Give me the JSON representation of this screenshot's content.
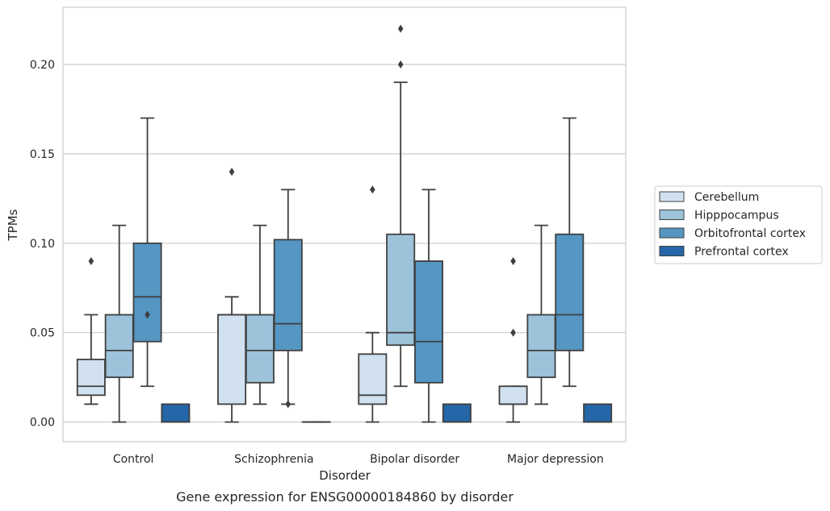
{
  "chart_data": {
    "type": "box",
    "xlabel": "Disorder",
    "ylabel": "TPMs",
    "caption": "Gene expression for ENSG00000184860 by disorder",
    "ylim": [
      -0.011,
      0.232
    ],
    "yticks": [
      0.0,
      0.05,
      0.1,
      0.15,
      0.2
    ],
    "ytick_labels": [
      "0.00",
      "0.05",
      "0.10",
      "0.15",
      "0.20"
    ],
    "grid": "horizontal",
    "legend_position": "right",
    "categories": [
      "Control",
      "Schizophrenia",
      "Bipolar disorder",
      "Major depression"
    ],
    "series": [
      {
        "name": "Cerebellum",
        "color": "#d1e1f0",
        "boxes": [
          {
            "whisker_low": 0.01,
            "q1": 0.015,
            "median": 0.02,
            "q3": 0.035,
            "whisker_high": 0.06,
            "outliers": [
              0.09
            ]
          },
          {
            "whisker_low": 0.0,
            "q1": 0.01,
            "median": 0.06,
            "q3": 0.06,
            "whisker_high": 0.07,
            "outliers": [
              0.14
            ]
          },
          {
            "whisker_low": 0.0,
            "q1": 0.01,
            "median": 0.015,
            "q3": 0.038,
            "whisker_high": 0.05,
            "outliers": [
              0.13
            ]
          },
          {
            "whisker_low": 0.0,
            "q1": 0.01,
            "median": 0.01,
            "q3": 0.02,
            "whisker_high": 0.02,
            "outliers": [
              0.05,
              0.09
            ]
          }
        ]
      },
      {
        "name": "Hipppocampus",
        "color": "#9cc3da",
        "boxes": [
          {
            "whisker_low": 0.0,
            "q1": 0.025,
            "median": 0.04,
            "q3": 0.06,
            "whisker_high": 0.11,
            "outliers": []
          },
          {
            "whisker_low": 0.01,
            "q1": 0.022,
            "median": 0.04,
            "q3": 0.06,
            "whisker_high": 0.11,
            "outliers": []
          },
          {
            "whisker_low": 0.02,
            "q1": 0.043,
            "median": 0.05,
            "q3": 0.105,
            "whisker_high": 0.19,
            "outliers": [
              0.2,
              0.22
            ]
          },
          {
            "whisker_low": 0.01,
            "q1": 0.025,
            "median": 0.04,
            "q3": 0.06,
            "whisker_high": 0.11,
            "outliers": []
          }
        ]
      },
      {
        "name": "Orbitofrontal cortex",
        "color": "#5596c3",
        "boxes": [
          {
            "whisker_low": 0.02,
            "q1": 0.045,
            "median": 0.07,
            "q3": 0.1,
            "whisker_high": 0.17,
            "outliers": [
              0.06
            ]
          },
          {
            "whisker_low": 0.01,
            "q1": 0.04,
            "median": 0.055,
            "q3": 0.102,
            "whisker_high": 0.13,
            "outliers": [
              0.01
            ]
          },
          {
            "whisker_low": 0.0,
            "q1": 0.022,
            "median": 0.045,
            "q3": 0.09,
            "whisker_high": 0.13,
            "outliers": []
          },
          {
            "whisker_low": 0.02,
            "q1": 0.04,
            "median": 0.06,
            "q3": 0.105,
            "whisker_high": 0.17,
            "outliers": []
          }
        ]
      },
      {
        "name": "Prefrontal cortex",
        "color": "#2566a8",
        "boxes": [
          {
            "whisker_low": 0.0,
            "q1": 0.0,
            "median": 0.0,
            "q3": 0.01,
            "whisker_high": 0.01,
            "outliers": []
          },
          {
            "whisker_low": 0.0,
            "q1": 0.0,
            "median": 0.0,
            "q3": 0.0,
            "whisker_high": 0.0,
            "outliers": []
          },
          {
            "whisker_low": 0.0,
            "q1": 0.0,
            "median": 0.0,
            "q3": 0.01,
            "whisker_high": 0.01,
            "outliers": []
          },
          {
            "whisker_low": 0.0,
            "q1": 0.0,
            "median": 0.0,
            "q3": 0.01,
            "whisker_high": 0.01,
            "outliers": []
          }
        ]
      }
    ]
  }
}
